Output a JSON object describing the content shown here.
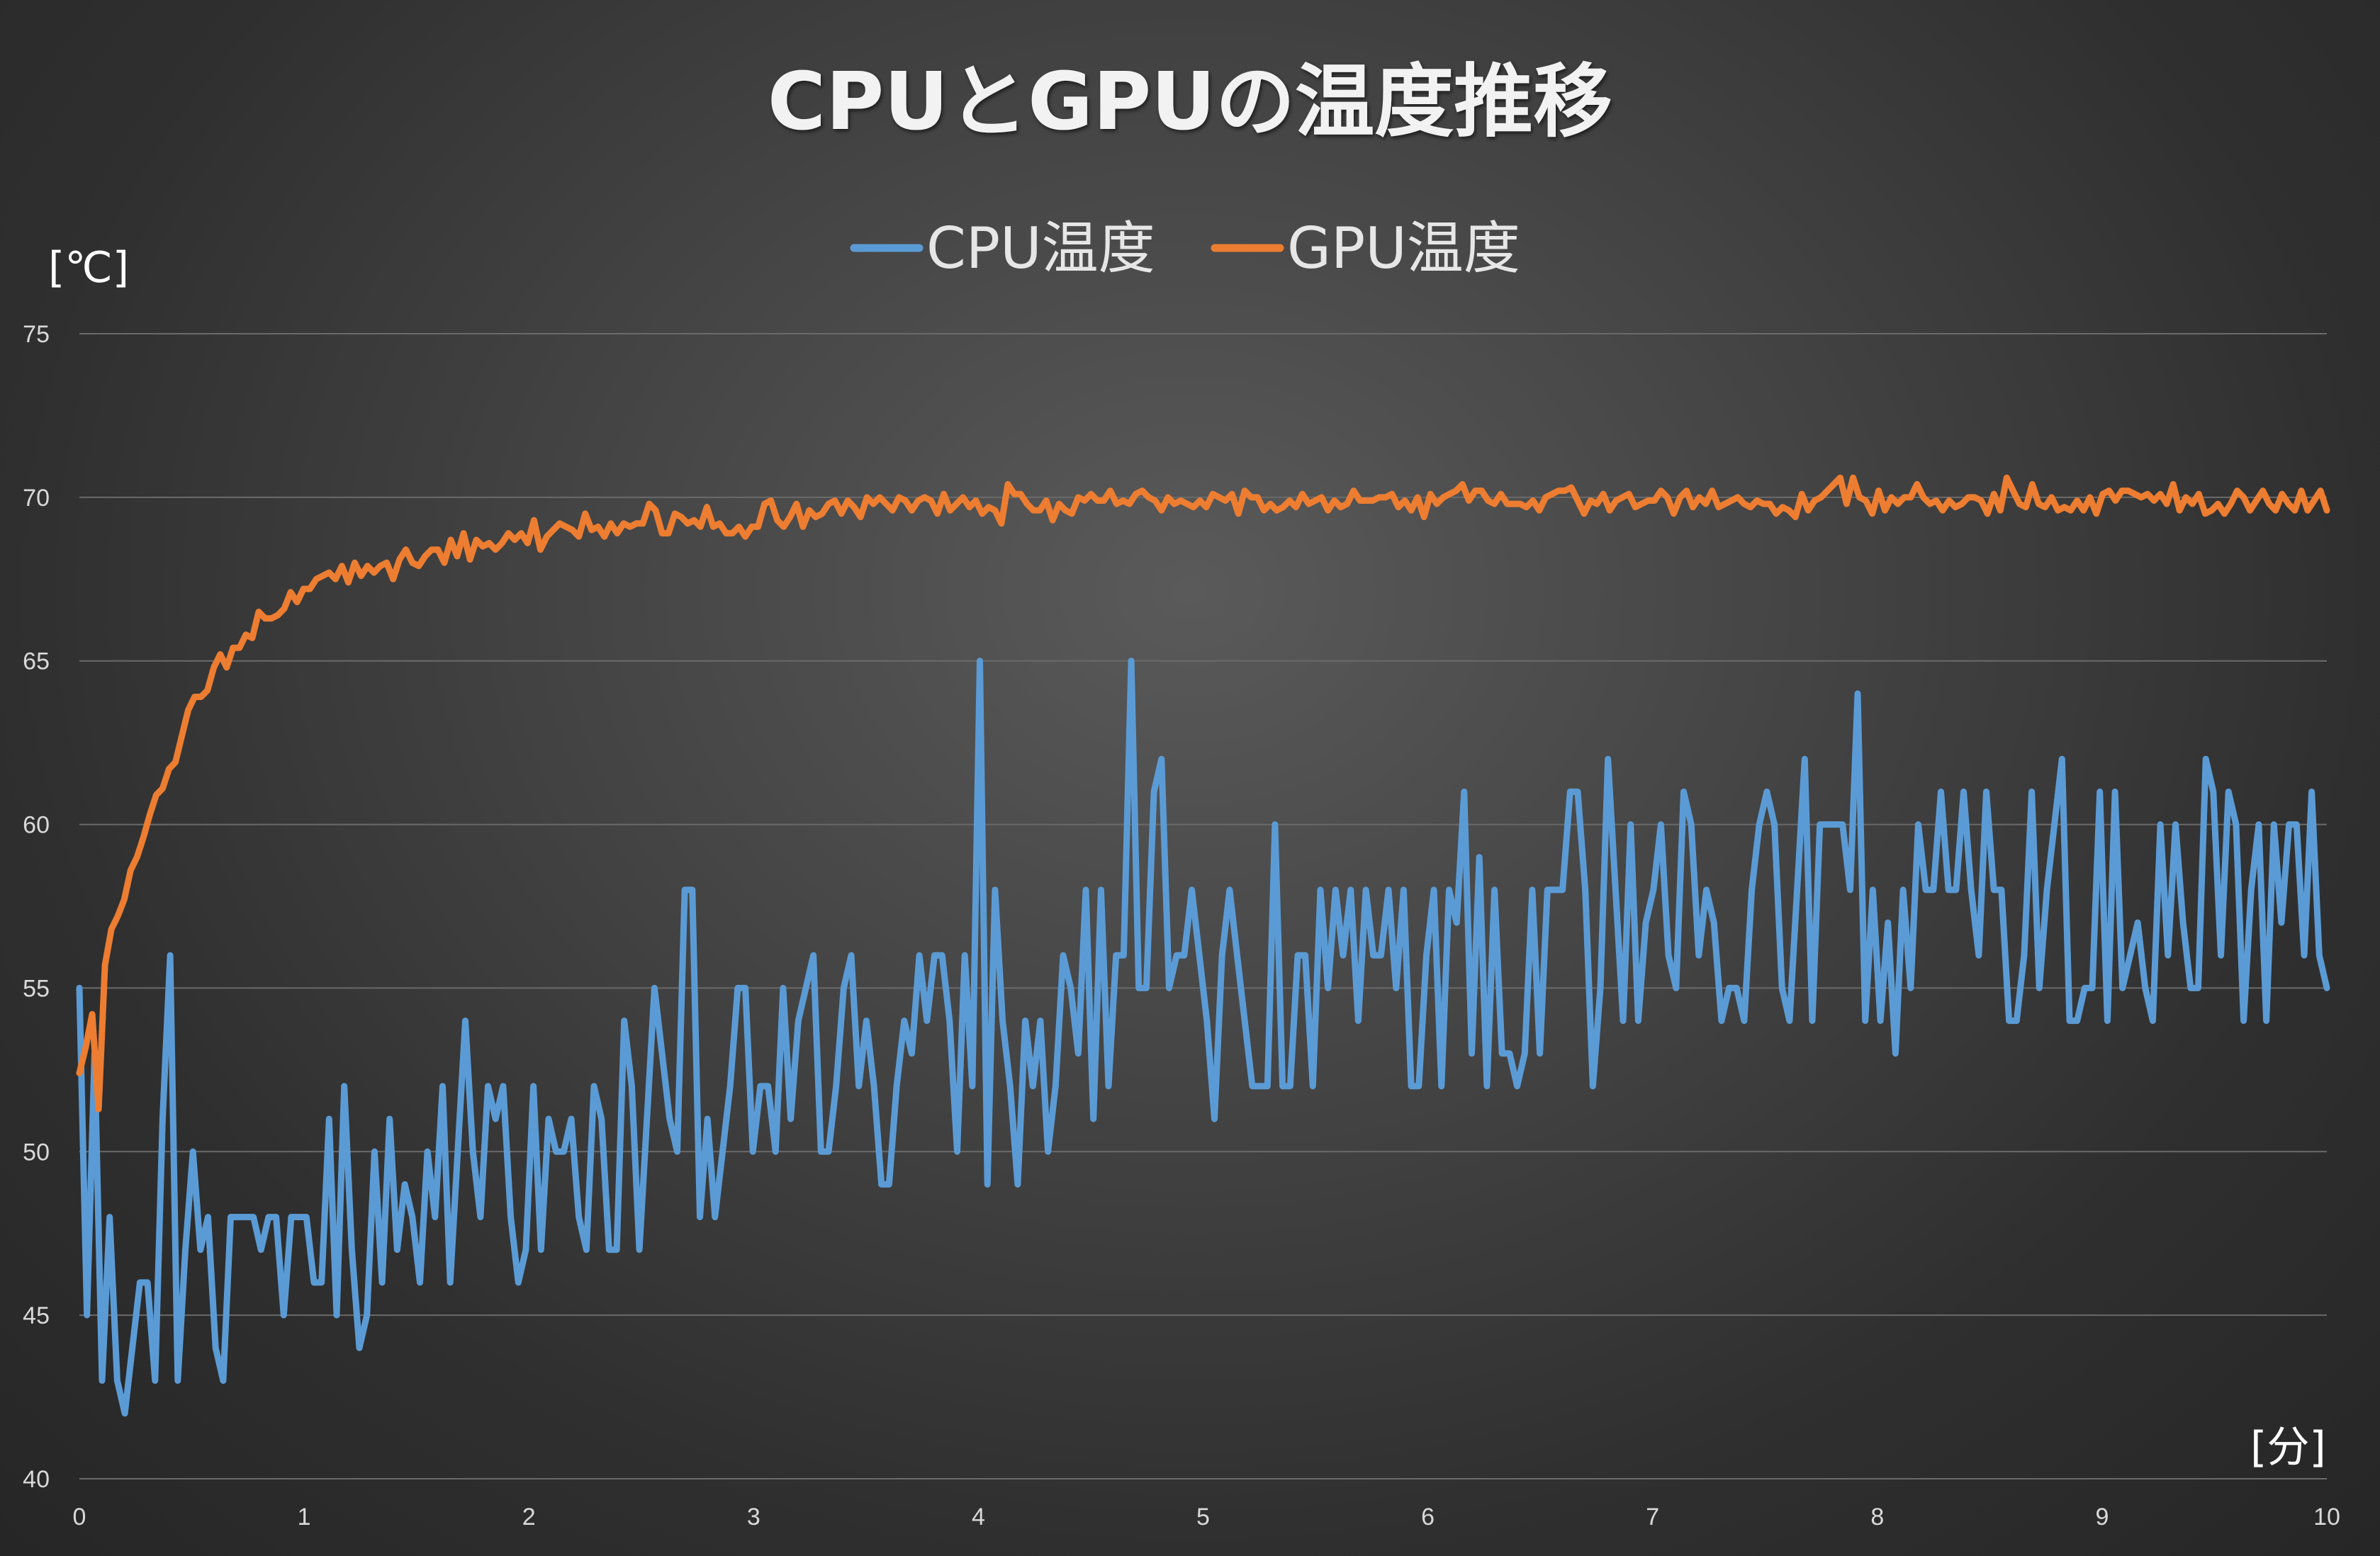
{
  "chart_data": {
    "type": "line",
    "title": "CPUとGPUの温度推移",
    "ylabel": "[℃]",
    "xlabel": "[分]",
    "xlim": [
      0,
      10
    ],
    "ylim": [
      40,
      75
    ],
    "xticks": [
      0,
      1,
      2,
      3,
      4,
      5,
      6,
      7,
      8,
      9,
      10
    ],
    "yticks": [
      40,
      45,
      50,
      55,
      60,
      65,
      70,
      75
    ],
    "grid": "horizontal",
    "legend_position": "top-center",
    "series": [
      {
        "name": "CPU温度",
        "color": "#5b9bd5",
        "values": [
          55,
          45,
          53,
          43,
          48,
          43,
          42,
          44,
          46,
          46,
          43,
          51,
          56,
          43,
          47,
          50,
          47,
          48,
          44,
          43,
          48,
          48,
          48,
          48,
          47,
          48,
          48,
          45,
          48,
          48,
          48,
          46,
          46,
          51,
          45,
          52,
          47,
          44,
          45,
          50,
          46,
          51,
          47,
          49,
          48,
          46,
          50,
          48,
          52,
          46,
          50,
          54,
          50,
          48,
          52,
          51,
          52,
          48,
          46,
          47,
          52,
          47,
          51,
          50,
          50,
          51,
          48,
          47,
          52,
          51,
          47,
          47,
          54,
          52,
          47,
          51,
          55,
          53,
          51,
          50,
          58,
          58,
          48,
          51,
          48,
          50,
          52,
          55,
          55,
          50,
          52,
          52,
          50,
          55,
          51,
          54,
          55,
          56,
          50,
          50,
          52,
          55,
          56,
          52,
          54,
          52,
          49,
          49,
          52,
          54,
          53,
          56,
          54,
          56,
          56,
          54,
          50,
          56,
          52,
          65,
          49,
          58,
          54,
          52,
          49,
          54,
          52,
          54,
          50,
          52,
          56,
          55,
          53,
          58,
          51,
          58,
          52,
          56,
          56,
          65,
          55,
          55,
          61,
          62,
          55,
          56,
          56,
          58,
          56,
          54,
          51,
          56,
          58,
          56,
          54,
          52,
          52,
          52,
          60,
          52,
          52,
          56,
          56,
          52,
          58,
          55,
          58,
          56,
          58,
          54,
          58,
          56,
          56,
          58,
          55,
          58,
          52,
          52,
          56,
          58,
          52,
          58,
          57,
          61,
          53,
          59,
          52,
          58,
          53,
          53,
          52,
          53,
          58,
          53,
          58,
          58,
          58,
          61,
          61,
          58,
          52,
          55,
          62,
          58,
          54,
          60,
          54,
          57,
          58,
          60,
          56,
          55,
          61,
          60,
          56,
          58,
          57,
          54,
          55,
          55,
          54,
          58,
          60,
          61,
          60,
          55,
          54,
          58,
          62,
          54,
          60,
          60,
          60,
          60,
          58,
          64,
          54,
          58,
          54,
          57,
          53,
          58,
          55,
          60,
          58,
          58,
          61,
          58,
          58,
          61,
          58,
          56,
          61,
          58,
          58,
          54,
          54,
          56,
          61,
          55,
          58,
          60,
          62,
          54,
          54,
          55,
          55,
          61,
          54,
          61,
          55,
          56,
          57,
          55,
          54,
          60,
          56,
          60,
          57,
          55,
          55,
          62,
          61,
          56,
          61,
          60,
          54,
          58,
          60,
          54,
          60,
          57,
          60,
          60,
          56,
          61,
          56,
          55
        ]
      },
      {
        "name": "GPU温度",
        "color": "#ed7d31",
        "values": [
          52.4,
          53.2,
          54.2,
          51.3,
          55.7,
          56.8,
          57.2,
          57.7,
          58.6,
          59,
          59.6,
          60.3,
          60.9,
          61.1,
          61.7,
          61.9,
          62.7,
          63.5,
          63.9,
          63.9,
          64.1,
          64.8,
          65.2,
          64.8,
          65.4,
          65.4,
          65.8,
          65.7,
          66.5,
          66.3,
          66.3,
          66.4,
          66.6,
          67.1,
          66.8,
          67.2,
          67.2,
          67.5,
          67.6,
          67.7,
          67.5,
          67.9,
          67.4,
          68,
          67.6,
          67.9,
          67.7,
          67.9,
          68,
          67.5,
          68.1,
          68.4,
          68,
          67.9,
          68.2,
          68.4,
          68.4,
          68,
          68.7,
          68.2,
          68.9,
          68.1,
          68.7,
          68.5,
          68.6,
          68.4,
          68.6,
          68.9,
          68.7,
          68.9,
          68.6,
          69.3,
          68.4,
          68.8,
          69,
          69.2,
          69.1,
          69,
          68.8,
          69.5,
          69,
          69.1,
          68.8,
          69.2,
          68.9,
          69.2,
          69.1,
          69.2,
          69.2,
          69.8,
          69.6,
          68.9,
          68.9,
          69.5,
          69.4,
          69.2,
          69.3,
          69.1,
          69.7,
          69.1,
          69.2,
          68.9,
          68.9,
          69.1,
          68.8,
          69.1,
          69.1,
          69.8,
          69.9,
          69.3,
          69.1,
          69.4,
          69.8,
          69.1,
          69.6,
          69.4,
          69.5,
          69.8,
          69.9,
          69.5,
          69.9,
          69.7,
          69.4,
          70,
          69.8,
          70,
          69.8,
          69.6,
          70,
          69.9,
          69.6,
          69.9,
          70,
          69.9,
          69.5,
          70.1,
          69.6,
          69.8,
          70,
          69.7,
          69.9,
          69.5,
          69.7,
          69.6,
          69.2,
          70.4,
          70.1,
          70.1,
          69.8,
          69.6,
          69.6,
          69.9,
          69.3,
          69.8,
          69.6,
          69.5,
          70,
          69.9,
          70.1,
          69.9,
          69.9,
          70.2,
          69.8,
          69.9,
          69.8,
          70.1,
          70.2,
          70,
          69.9,
          69.6,
          70,
          69.8,
          69.9,
          69.8,
          69.7,
          69.9,
          69.7,
          70.1,
          70,
          69.9,
          70.1,
          69.5,
          70.2,
          70,
          70,
          69.6,
          69.8,
          69.6,
          69.7,
          69.9,
          69.7,
          70.1,
          69.8,
          69.9,
          70,
          69.6,
          69.9,
          69.7,
          69.8,
          70.2,
          69.9,
          69.9,
          69.9,
          70,
          70,
          70.1,
          69.7,
          69.9,
          69.6,
          70,
          69.4,
          70.1,
          69.8,
          70,
          70.1,
          70.2,
          70.4,
          69.9,
          70.2,
          70.2,
          69.9,
          69.8,
          70.1,
          69.8,
          69.8,
          69.8,
          69.7,
          69.9,
          69.6,
          70,
          70.1,
          70.2,
          70.2,
          70.3,
          69.9,
          69.5,
          69.9,
          69.8,
          70.1,
          69.6,
          69.9,
          70,
          70.1,
          69.7,
          69.8,
          69.9,
          69.9,
          70.2,
          70,
          69.5,
          70,
          70.2,
          69.7,
          70,
          69.8,
          70.2,
          69.7,
          69.8,
          69.9,
          70,
          69.8,
          69.7,
          69.9,
          69.8,
          69.8,
          69.5,
          69.7,
          69.6,
          69.4,
          70.1,
          69.6,
          69.9,
          70,
          70.2,
          70.4,
          70.6,
          69.8,
          70.6,
          70,
          69.9,
          69.5,
          70.2,
          69.6,
          70,
          69.8,
          70,
          70,
          70.4,
          70,
          69.8,
          69.9,
          69.6,
          69.9,
          69.7,
          69.8,
          70,
          70,
          69.9,
          69.5,
          70.1,
          69.6,
          70.6,
          70.2,
          69.8,
          69.7,
          70.4,
          69.8,
          69.7,
          70,
          69.6,
          69.7,
          69.6,
          69.9,
          69.6,
          70,
          69.5,
          70.1,
          70.2,
          69.9,
          70.2,
          70.2,
          70.1,
          70,
          70.1,
          69.9,
          70.1,
          69.8,
          70.4,
          69.6,
          70,
          69.8,
          70.1,
          69.5,
          69.6,
          69.8,
          69.5,
          69.8,
          70.2,
          70,
          69.6,
          69.9,
          70.2,
          69.8,
          69.6,
          70.1,
          69.8,
          69.6,
          70.2,
          69.6,
          69.9,
          70.2,
          69.6
        ]
      }
    ]
  }
}
